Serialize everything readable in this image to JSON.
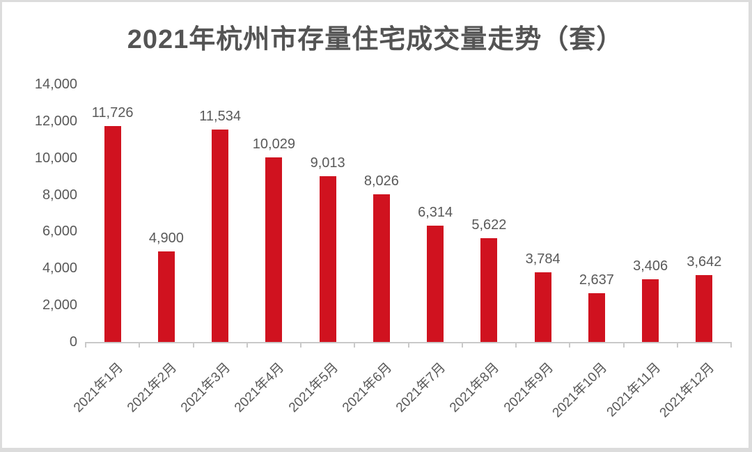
{
  "chart_data": {
    "type": "bar",
    "title": "2021年杭州市存量住宅成交量走势（套）",
    "xlabel": "",
    "ylabel": "",
    "categories": [
      "2021年1月",
      "2021年2月",
      "2021年3月",
      "2021年4月",
      "2021年5月",
      "2021年6月",
      "2021年7月",
      "2021年8月",
      "2021年9月",
      "2021年10月",
      "2021年11月",
      "2021年12月"
    ],
    "values": [
      11726,
      4900,
      11534,
      10029,
      9013,
      8026,
      6314,
      5622,
      3784,
      2637,
      3406,
      3642
    ],
    "value_labels": [
      "11,726",
      "4,900",
      "11,534",
      "10,029",
      "9,013",
      "8,026",
      "6,314",
      "5,622",
      "3,784",
      "2,637",
      "3,406",
      "3,642"
    ],
    "y_ticks": [
      {
        "label": "14,000",
        "value": 14000
      },
      {
        "label": "12,000",
        "value": 12000
      },
      {
        "label": "10,000",
        "value": 10000
      },
      {
        "label": "8,000",
        "value": 8000
      },
      {
        "label": "6,000",
        "value": 6000
      },
      {
        "label": "4,000",
        "value": 4000
      },
      {
        "label": "2,000",
        "value": 2000
      },
      {
        "label": "0",
        "value": 0
      }
    ],
    "ylim": [
      0,
      14000
    ],
    "y_step": 2000,
    "grid": false,
    "legend_position": "none",
    "colors": {
      "bar": "#d0121f",
      "text": "#595959",
      "title": "#545454",
      "axis": "#c9c9c9",
      "card_border": "#dcdcdc",
      "background": "#ffffff"
    }
  }
}
